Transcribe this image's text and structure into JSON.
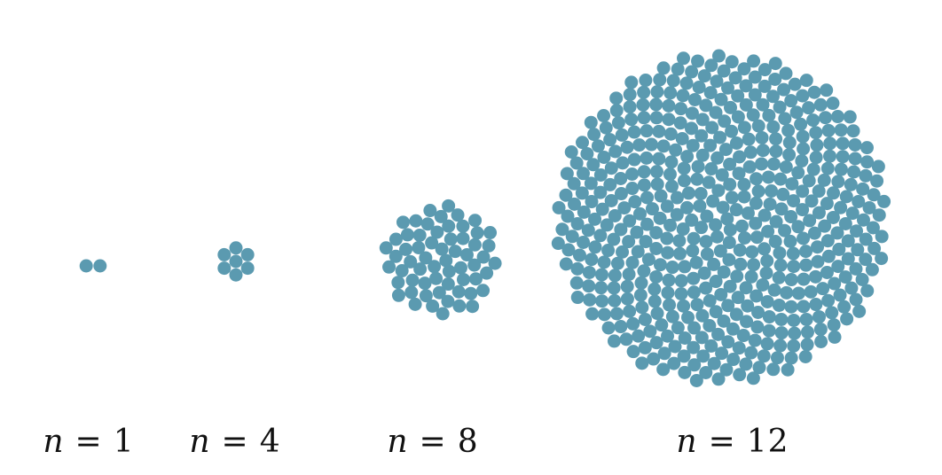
{
  "colors": {
    "disc": "#5b9ab0",
    "background": "#ffffff",
    "label": "#111111"
  },
  "clusters": [
    {
      "name": "cluster-n1",
      "n": 1,
      "label_var": "n",
      "label_eq": "=",
      "label_value": "1",
      "disc_count": 2
    },
    {
      "name": "cluster-n4",
      "n": 4,
      "label_var": "n",
      "label_eq": "=",
      "label_value": "4",
      "disc_count": 7
    },
    {
      "name": "cluster-n8",
      "n": 8,
      "label_var": "n",
      "label_eq": "=",
      "label_value": "8",
      "disc_count": 61
    },
    {
      "name": "cluster-n12",
      "n": 12,
      "label_var": "n",
      "label_eq": "=",
      "label_value": "12",
      "disc_count": 519
    }
  ]
}
